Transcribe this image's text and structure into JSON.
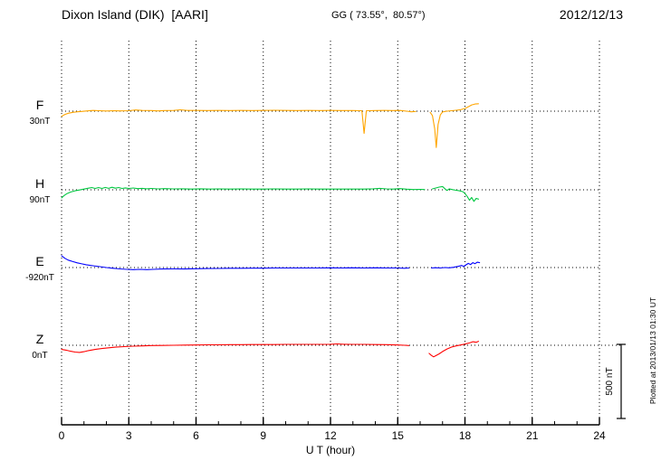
{
  "header": {
    "title": "Dixon Island (DIK)  [AARI]",
    "coordinates": "GG ( 73.55°,  80.57°)",
    "date": "2012/12/13"
  },
  "chart_data": {
    "type": "line",
    "title": "Dixon Island (DIK)  [AARI]",
    "subtitle": "GG ( 73.55°,  80.57°)",
    "date": "2012/12/13",
    "xlabel": "U T (hour)",
    "x_range": [
      0,
      24
    ],
    "x_ticks": [
      0,
      3,
      6,
      9,
      12,
      15,
      18,
      21,
      24
    ],
    "grid": "dotted",
    "scale_bar": {
      "label": "500 nT",
      "nT": 500
    },
    "footer_note": "Plotted at 2013/01/13 01:30 UT",
    "series": [
      {
        "name": "F",
        "baseline_label": "30nT",
        "color": "#ffa500",
        "units_nT_relative_to_baseline": true,
        "segments": [
          [
            [
              0,
              -35
            ],
            [
              0.15,
              -22
            ],
            [
              0.3,
              -14
            ],
            [
              0.5,
              -8
            ],
            [
              0.7,
              -4
            ],
            [
              0.9,
              -2
            ],
            [
              1.1,
              1
            ],
            [
              1.4,
              5
            ],
            [
              1.7,
              3
            ],
            [
              2,
              1
            ],
            [
              2.3,
              3
            ],
            [
              2.6,
              2
            ],
            [
              3,
              3
            ],
            [
              3.3,
              8
            ],
            [
              3.6,
              5
            ],
            [
              4,
              4
            ],
            [
              4.3,
              2
            ],
            [
              4.6,
              4
            ],
            [
              5,
              5
            ],
            [
              5.3,
              9
            ],
            [
              5.6,
              5
            ],
            [
              6,
              5
            ],
            [
              6.5,
              4
            ],
            [
              7,
              5
            ],
            [
              7.5,
              4
            ],
            [
              8,
              5
            ],
            [
              8.5,
              4
            ],
            [
              9,
              5
            ],
            [
              9.5,
              6
            ],
            [
              10,
              5
            ],
            [
              10.5,
              4
            ],
            [
              11,
              5
            ],
            [
              11.5,
              4
            ],
            [
              12,
              5
            ],
            [
              12.5,
              4
            ],
            [
              13,
              4
            ],
            [
              13.4,
              3
            ],
            [
              13.5,
              -150
            ],
            [
              13.6,
              3
            ],
            [
              14,
              4
            ],
            [
              14.4,
              5
            ],
            [
              14.8,
              4
            ],
            [
              15.1,
              5
            ],
            [
              15.4,
              0
            ],
            [
              15.6,
              -4
            ],
            [
              15.8,
              -2
            ]
          ],
          [
            [
              16.45,
              -8
            ],
            [
              16.55,
              -30
            ],
            [
              16.65,
              -120
            ],
            [
              16.72,
              -245
            ],
            [
              16.8,
              -90
            ],
            [
              16.9,
              -25
            ],
            [
              17.0,
              -5
            ],
            [
              17.2,
              0
            ],
            [
              17.4,
              3
            ],
            [
              17.6,
              6
            ],
            [
              17.8,
              10
            ],
            [
              18.0,
              18
            ],
            [
              18.15,
              30
            ],
            [
              18.3,
              42
            ],
            [
              18.45,
              48
            ],
            [
              18.6,
              50
            ]
          ]
        ]
      },
      {
        "name": "H",
        "baseline_label": "90nT",
        "color": "#00c840",
        "units_nT_relative_to_baseline": true,
        "segments": [
          [
            [
              0,
              -55
            ],
            [
              0.12,
              -38
            ],
            [
              0.25,
              -25
            ],
            [
              0.4,
              -15
            ],
            [
              0.6,
              -7
            ],
            [
              0.8,
              -1
            ],
            [
              1.0,
              5
            ],
            [
              1.2,
              11
            ],
            [
              1.35,
              15
            ],
            [
              1.5,
              9
            ],
            [
              1.65,
              15
            ],
            [
              1.8,
              9
            ],
            [
              1.95,
              16
            ],
            [
              2.1,
              10
            ],
            [
              2.25,
              17
            ],
            [
              2.4,
              11
            ],
            [
              2.55,
              15
            ],
            [
              2.7,
              9
            ],
            [
              2.85,
              13
            ],
            [
              3.0,
              9
            ],
            [
              3.2,
              12
            ],
            [
              3.4,
              8
            ],
            [
              3.6,
              10
            ],
            [
              3.8,
              7
            ],
            [
              4,
              9
            ],
            [
              4.3,
              6
            ],
            [
              4.6,
              8
            ],
            [
              5,
              6
            ],
            [
              5.4,
              7
            ],
            [
              5.8,
              5
            ],
            [
              6.2,
              7
            ],
            [
              6.6,
              5
            ],
            [
              7,
              6
            ],
            [
              7.5,
              5
            ],
            [
              8,
              6
            ],
            [
              8.5,
              5
            ],
            [
              9,
              5
            ],
            [
              9.5,
              6
            ],
            [
              10,
              5
            ],
            [
              10.5,
              5
            ],
            [
              11,
              6
            ],
            [
              11.5,
              5
            ],
            [
              12,
              5
            ],
            [
              12.5,
              5
            ],
            [
              13,
              5
            ],
            [
              13.5,
              5
            ],
            [
              13.9,
              7
            ],
            [
              14.2,
              10
            ],
            [
              14.5,
              6
            ],
            [
              14.8,
              5
            ],
            [
              15.1,
              8
            ],
            [
              15.4,
              4
            ],
            [
              15.7,
              2
            ],
            [
              16.0,
              3
            ],
            [
              16.2,
              2
            ]
          ],
          [
            [
              16.55,
              6
            ],
            [
              16.7,
              12
            ],
            [
              16.85,
              18
            ],
            [
              17.0,
              22
            ],
            [
              17.1,
              8
            ],
            [
              17.2,
              -4
            ],
            [
              17.3,
              6
            ],
            [
              17.45,
              1
            ],
            [
              17.6,
              -3
            ],
            [
              17.75,
              -7
            ],
            [
              17.9,
              -12
            ],
            [
              18.0,
              -25
            ],
            [
              18.1,
              -45
            ],
            [
              18.2,
              -70
            ],
            [
              18.3,
              -52
            ],
            [
              18.4,
              -78
            ],
            [
              18.5,
              -58
            ],
            [
              18.6,
              -63
            ]
          ]
        ]
      },
      {
        "name": "E",
        "baseline_label": "-920nT",
        "color": "#0000ff",
        "units_nT_relative_to_baseline": true,
        "segments": [
          [
            [
              0,
              80
            ],
            [
              0.15,
              62
            ],
            [
              0.3,
              50
            ],
            [
              0.5,
              40
            ],
            [
              0.7,
              32
            ],
            [
              0.9,
              25
            ],
            [
              1.1,
              19
            ],
            [
              1.4,
              12
            ],
            [
              1.7,
              6
            ],
            [
              2.0,
              0
            ],
            [
              2.3,
              -5
            ],
            [
              2.6,
              -9
            ],
            [
              2.9,
              -12
            ],
            [
              3.2,
              -14
            ],
            [
              3.5,
              -12
            ],
            [
              3.8,
              -14
            ],
            [
              4.1,
              -12
            ],
            [
              4.5,
              -10
            ],
            [
              5,
              -9
            ],
            [
              5.5,
              -10
            ],
            [
              6,
              -8
            ],
            [
              6.5,
              -7
            ],
            [
              7,
              -6
            ],
            [
              7.5,
              -5
            ],
            [
              8,
              -5
            ],
            [
              8.5,
              -4
            ],
            [
              9,
              -4
            ],
            [
              9.5,
              -3
            ],
            [
              10,
              -3
            ],
            [
              10.5,
              -3
            ],
            [
              11,
              -3
            ],
            [
              11.5,
              -3
            ],
            [
              12,
              -2
            ],
            [
              12.5,
              -3
            ],
            [
              13,
              -2
            ],
            [
              13.5,
              -3
            ],
            [
              14,
              -2
            ],
            [
              14.5,
              -3
            ],
            [
              15,
              -3
            ],
            [
              15.3,
              -5
            ],
            [
              15.5,
              -3
            ]
          ],
          [
            [
              16.5,
              -3
            ],
            [
              16.7,
              -1
            ],
            [
              16.9,
              -3
            ],
            [
              17.1,
              0
            ],
            [
              17.3,
              -2
            ],
            [
              17.5,
              2
            ],
            [
              17.7,
              8
            ],
            [
              17.85,
              14
            ],
            [
              17.95,
              8
            ],
            [
              18.05,
              18
            ],
            [
              18.15,
              28
            ],
            [
              18.25,
              20
            ],
            [
              18.35,
              33
            ],
            [
              18.45,
              26
            ],
            [
              18.55,
              36
            ],
            [
              18.65,
              33
            ]
          ]
        ]
      },
      {
        "name": "Z",
        "baseline_label": "0nT",
        "color": "#ff0000",
        "units_nT_relative_to_baseline": true,
        "segments": [
          [
            [
              0,
              -28
            ],
            [
              0.2,
              -33
            ],
            [
              0.4,
              -40
            ],
            [
              0.6,
              -46
            ],
            [
              0.8,
              -48
            ],
            [
              1.0,
              -43
            ],
            [
              1.2,
              -36
            ],
            [
              1.5,
              -28
            ],
            [
              1.8,
              -22
            ],
            [
              2.1,
              -17
            ],
            [
              2.4,
              -13
            ],
            [
              2.8,
              -9
            ],
            [
              3.2,
              -6
            ],
            [
              3.6,
              -4
            ],
            [
              4,
              -2
            ],
            [
              4.5,
              -1
            ],
            [
              5,
              0
            ],
            [
              5.5,
              1
            ],
            [
              6,
              2
            ],
            [
              6.5,
              3
            ],
            [
              7,
              3
            ],
            [
              7.5,
              4
            ],
            [
              8,
              4
            ],
            [
              8.5,
              5
            ],
            [
              9,
              5
            ],
            [
              9.5,
              5
            ],
            [
              10,
              6
            ],
            [
              10.5,
              6
            ],
            [
              11,
              6
            ],
            [
              11.5,
              6
            ],
            [
              12,
              7
            ],
            [
              12.3,
              9
            ],
            [
              12.6,
              7
            ],
            [
              13,
              6
            ],
            [
              13.5,
              6
            ],
            [
              14,
              5
            ],
            [
              14.5,
              4
            ],
            [
              15,
              2
            ],
            [
              15.3,
              0
            ],
            [
              15.5,
              -2
            ]
          ],
          [
            [
              16.4,
              -55
            ],
            [
              16.5,
              -68
            ],
            [
              16.6,
              -78
            ],
            [
              16.7,
              -70
            ],
            [
              16.85,
              -58
            ],
            [
              17.0,
              -42
            ],
            [
              17.2,
              -25
            ],
            [
              17.4,
              -12
            ],
            [
              17.6,
              -4
            ],
            [
              17.8,
              2
            ],
            [
              18.0,
              8
            ],
            [
              18.2,
              16
            ],
            [
              18.35,
              24
            ],
            [
              18.5,
              20
            ],
            [
              18.6,
              27
            ]
          ]
        ]
      }
    ]
  }
}
